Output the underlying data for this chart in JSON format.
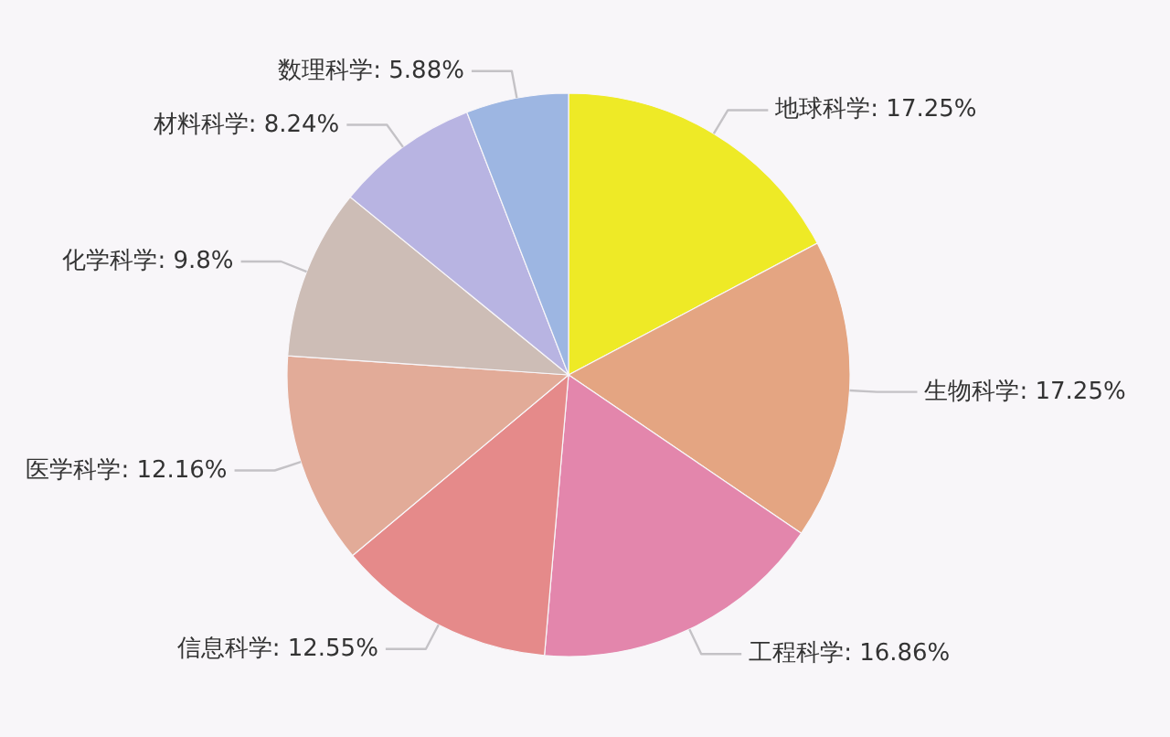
{
  "chart_data": {
    "type": "pie",
    "categories": [
      "地球科学",
      "生物科学",
      "工程科学",
      "信息科学",
      "医学科学",
      "化学科学",
      "材料科学",
      "数理科学"
    ],
    "values": [
      17.25,
      17.25,
      16.86,
      12.55,
      12.16,
      9.8,
      8.24,
      5.88
    ],
    "value_labels": [
      "17.25%",
      "17.25%",
      "16.86%",
      "12.55%",
      "12.16%",
      "9.8%",
      "8.24%",
      "5.88%"
    ],
    "colors": [
      "#eeea26",
      "#e4a582",
      "#e386ac",
      "#e58a8a",
      "#e2ab98",
      "#cdbdb6",
      "#b8b4e2",
      "#9db6e2"
    ]
  }
}
